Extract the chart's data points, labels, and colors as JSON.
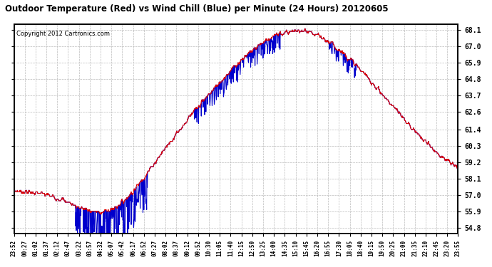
{
  "title": "Outdoor Temperature (Red) vs Wind Chill (Blue) per Minute (24 Hours) 20120605",
  "copyright": "Copyright 2012 Cartronics.com",
  "y_tick_values": [
    54.8,
    55.9,
    57.0,
    58.1,
    59.2,
    60.3,
    61.4,
    62.6,
    63.7,
    64.8,
    65.9,
    67.0,
    68.1
  ],
  "ymin": 54.4,
  "ymax": 68.5,
  "bg_color": "#ffffff",
  "grid_color": "#bbbbbb",
  "line_color_temp": "#dd0000",
  "line_color_wind": "#0000cc",
  "total_minutes": 1440,
  "x_tick_labels": [
    "23:52",
    "00:27",
    "01:02",
    "01:37",
    "02:12",
    "02:47",
    "03:22",
    "03:57",
    "04:32",
    "05:07",
    "05:42",
    "06:17",
    "06:52",
    "07:27",
    "08:02",
    "08:37",
    "09:12",
    "09:52",
    "10:30",
    "11:05",
    "11:40",
    "12:15",
    "12:50",
    "13:25",
    "14:00",
    "14:35",
    "15:10",
    "15:45",
    "16:20",
    "16:55",
    "17:30",
    "18:05",
    "18:40",
    "19:15",
    "19:50",
    "20:25",
    "21:00",
    "21:35",
    "22:10",
    "22:45",
    "23:20",
    "23:55"
  ]
}
